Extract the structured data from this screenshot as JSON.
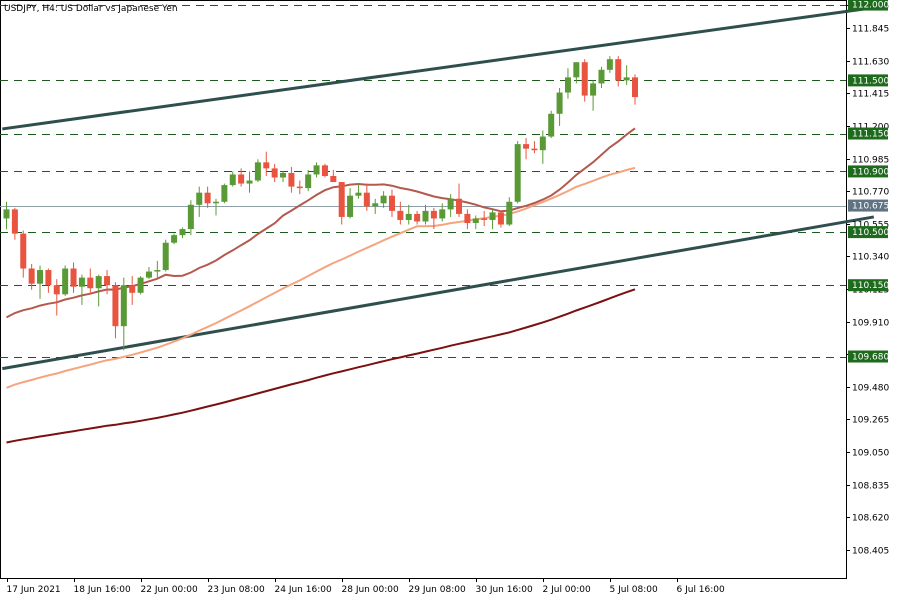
{
  "chart_data": {
    "type": "candlestick",
    "title": "USDJPY, H4:  US Dollar vs Japanese Yen",
    "ylim": [
      108.22,
      112.03
    ],
    "y_ticks": [
      "112.000",
      "111.845",
      "111.630",
      "111.415",
      "111.200",
      "110.985",
      "110.770",
      "110.555",
      "110.340",
      "110.125",
      "109.910",
      "109.695",
      "109.480",
      "109.265",
      "109.050",
      "108.835",
      "108.620",
      "108.405"
    ],
    "x_labels": [
      {
        "bar": 0,
        "label": "17 Jun 2021"
      },
      {
        "bar": 8,
        "label": "18 Jun 16:00"
      },
      {
        "bar": 16,
        "label": "22 Jun 00:00"
      },
      {
        "bar": 24,
        "label": "23 Jun 08:00"
      },
      {
        "bar": 32,
        "label": "24 Jun 16:00"
      },
      {
        "bar": 40,
        "label": "28 Jun 00:00"
      },
      {
        "bar": 48,
        "label": "29 Jun 08:00"
      },
      {
        "bar": 56,
        "label": "30 Jun 16:00"
      },
      {
        "bar": 64,
        "label": "2 Jul 00:00"
      },
      {
        "bar": 72,
        "label": "5 Jul 08:00"
      },
      {
        "bar": 80,
        "label": "6 Jul 16:00"
      }
    ],
    "current_price": 110.675,
    "levels": [
      {
        "value": 112.0,
        "label": "112.000"
      },
      {
        "value": 111.5,
        "label": "111.500"
      },
      {
        "value": 111.15,
        "label": "111.150"
      },
      {
        "value": 110.9,
        "label": "110.900"
      },
      {
        "value": 110.5,
        "label": "110.500"
      },
      {
        "value": 110.15,
        "label": "110.150"
      },
      {
        "value": 109.68,
        "label": "109.680"
      }
    ],
    "trendlines": [
      {
        "name": "upper-channel",
        "from": {
          "bar": -0.5,
          "price": 111.18
        },
        "to": {
          "bar": 103.5,
          "price": 111.98
        }
      },
      {
        "name": "lower-channel",
        "from": {
          "bar": -0.5,
          "price": 109.6
        },
        "to": {
          "bar": 103.5,
          "price": 110.6
        }
      }
    ],
    "colors": {
      "bull": "#5a9a36",
      "bear": "#e8543f",
      "level_line": "#1e5a1e",
      "level_label_bg": "#1e6b1e",
      "trendline": "#2f4f4f",
      "ma_fast": "#b35a4f",
      "ma_mid": "#f4a57e",
      "ma_slow": "#7a1010",
      "current_price_line": "#8fa0a8",
      "current_price_label_bg": "#5f7382"
    },
    "ohlc": [
      [
        110.59,
        110.7,
        110.52,
        110.65
      ],
      [
        110.65,
        110.66,
        110.45,
        110.49
      ],
      [
        110.49,
        110.51,
        110.2,
        110.26
      ],
      [
        110.26,
        110.29,
        110.12,
        110.16
      ],
      [
        110.16,
        110.28,
        110.06,
        110.25
      ],
      [
        110.25,
        110.26,
        110.1,
        110.15
      ],
      [
        110.15,
        110.19,
        109.95,
        110.09
      ],
      [
        110.09,
        110.28,
        110.08,
        110.26
      ],
      [
        110.26,
        110.3,
        110.1,
        110.14
      ],
      [
        110.14,
        110.22,
        110.02,
        110.2
      ],
      [
        110.2,
        110.26,
        110.09,
        110.13
      ],
      [
        110.13,
        110.22,
        110.01,
        110.21
      ],
      [
        110.21,
        110.25,
        110.09,
        110.15
      ],
      [
        110.15,
        110.17,
        109.8,
        109.88
      ],
      [
        109.88,
        110.2,
        109.72,
        110.15
      ],
      [
        110.15,
        110.21,
        110.02,
        110.1
      ],
      [
        110.1,
        110.21,
        110.09,
        110.2
      ],
      [
        110.2,
        110.27,
        110.19,
        110.24
      ],
      [
        110.24,
        110.31,
        110.2,
        110.25
      ],
      [
        110.25,
        110.45,
        110.24,
        110.43
      ],
      [
        110.43,
        110.49,
        110.42,
        110.48
      ],
      [
        110.48,
        110.53,
        110.46,
        110.52
      ],
      [
        110.52,
        110.71,
        110.48,
        110.68
      ],
      [
        110.68,
        110.8,
        110.6,
        110.76
      ],
      [
        110.76,
        110.8,
        110.66,
        110.69
      ],
      [
        110.69,
        110.72,
        110.61,
        110.7
      ],
      [
        110.7,
        110.82,
        110.69,
        110.81
      ],
      [
        110.81,
        110.9,
        110.8,
        110.88
      ],
      [
        110.88,
        110.92,
        110.8,
        110.82
      ],
      [
        110.82,
        110.9,
        110.76,
        110.84
      ],
      [
        110.84,
        110.98,
        110.83,
        110.96
      ],
      [
        110.96,
        111.03,
        110.87,
        110.92
      ],
      [
        110.92,
        110.95,
        110.83,
        110.86
      ],
      [
        110.86,
        110.9,
        110.83,
        110.89
      ],
      [
        110.89,
        110.93,
        110.76,
        110.8
      ],
      [
        110.8,
        110.84,
        110.75,
        110.79
      ],
      [
        110.79,
        110.91,
        110.77,
        110.88
      ],
      [
        110.88,
        110.96,
        110.86,
        110.94
      ],
      [
        110.94,
        110.95,
        110.86,
        110.87
      ],
      [
        110.87,
        110.91,
        110.83,
        110.83
      ],
      [
        110.83,
        110.83,
        110.55,
        110.6
      ],
      [
        110.6,
        110.79,
        110.59,
        110.74
      ],
      [
        110.74,
        110.82,
        110.72,
        110.76
      ],
      [
        110.76,
        110.82,
        110.64,
        110.67
      ],
      [
        110.67,
        110.72,
        110.62,
        110.69
      ],
      [
        110.69,
        110.77,
        110.66,
        110.74
      ],
      [
        110.74,
        110.78,
        110.6,
        110.64
      ],
      [
        110.64,
        110.7,
        110.55,
        110.58
      ],
      [
        110.58,
        110.68,
        110.55,
        110.62
      ],
      [
        110.62,
        110.64,
        110.55,
        110.57
      ],
      [
        110.57,
        110.68,
        110.55,
        110.64
      ],
      [
        110.64,
        110.66,
        110.52,
        110.59
      ],
      [
        110.59,
        110.69,
        110.57,
        110.65
      ],
      [
        110.65,
        110.75,
        110.6,
        110.72
      ],
      [
        110.72,
        110.82,
        110.6,
        110.62
      ],
      [
        110.62,
        110.65,
        110.52,
        110.56
      ],
      [
        110.56,
        110.61,
        110.52,
        110.59
      ],
      [
        110.59,
        110.64,
        110.54,
        110.58
      ],
      [
        110.58,
        110.65,
        110.52,
        110.63
      ],
      [
        110.63,
        110.64,
        110.53,
        110.55
      ],
      [
        110.55,
        110.73,
        110.54,
        110.7
      ],
      [
        110.7,
        111.1,
        110.69,
        111.08
      ],
      [
        111.08,
        111.12,
        110.98,
        111.05
      ],
      [
        111.05,
        111.1,
        111.02,
        111.04
      ],
      [
        111.04,
        111.17,
        110.95,
        111.13
      ],
      [
        111.13,
        111.3,
        111.12,
        111.28
      ],
      [
        111.28,
        111.45,
        111.2,
        111.42
      ],
      [
        111.42,
        111.58,
        111.38,
        111.52
      ],
      [
        111.52,
        111.62,
        111.48,
        111.62
      ],
      [
        111.62,
        111.64,
        111.36,
        111.4
      ],
      [
        111.4,
        111.5,
        111.3,
        111.48
      ],
      [
        111.48,
        111.59,
        111.45,
        111.57
      ],
      [
        111.57,
        111.66,
        111.55,
        111.64
      ],
      [
        111.64,
        111.66,
        111.46,
        111.5
      ],
      [
        111.5,
        111.6,
        111.47,
        111.52
      ],
      [
        111.52,
        111.54,
        111.34,
        111.39
      ]
    ]
  }
}
